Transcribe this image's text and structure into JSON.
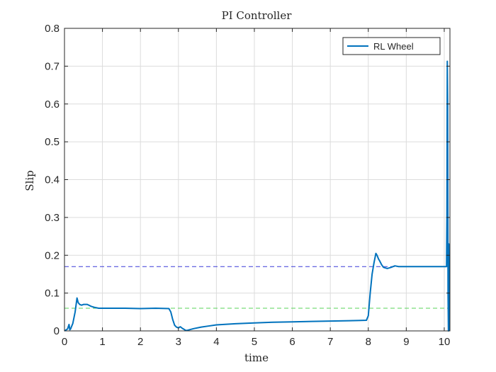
{
  "chart_data": {
    "type": "line",
    "title": "PI Controller",
    "xlabel": "time",
    "ylabel": "Slip",
    "xlim": [
      0,
      10.15
    ],
    "ylim": [
      0,
      0.8
    ],
    "xticks": [
      0,
      1,
      2,
      3,
      4,
      5,
      6,
      7,
      8,
      9,
      10
    ],
    "yticks": [
      0,
      0.1,
      0.2,
      0.3,
      0.4,
      0.5,
      0.6,
      0.7,
      0.8
    ],
    "xtick_labels": [
      "0",
      "1",
      "2",
      "3",
      "4",
      "5",
      "6",
      "7",
      "8",
      "9",
      "10"
    ],
    "ytick_labels": [
      "0",
      "0.1",
      "0.2",
      "0.3",
      "0.4",
      "0.5",
      "0.6",
      "0.7",
      "0.8"
    ],
    "grid": true,
    "legend_position": "top-right",
    "colors": {
      "series": "#0072bd",
      "ref_high": "#3a3ad8",
      "ref_low": "#5ad35a",
      "grid": "#dcdcdc",
      "axis": "#262626"
    },
    "series": [
      {
        "name": "RL Wheel",
        "x": [
          0,
          0.08,
          0.12,
          0.14,
          0.16,
          0.18,
          0.22,
          0.28,
          0.33,
          0.36,
          0.4,
          0.45,
          0.5,
          0.6,
          0.7,
          0.8,
          0.9,
          1.0,
          1.1,
          1.3,
          1.6,
          2.0,
          2.4,
          2.75,
          2.8,
          2.85,
          2.9,
          2.95,
          3.0,
          3.05,
          3.1,
          3.15,
          3.2,
          3.25,
          3.4,
          3.6,
          3.8,
          4.0,
          4.5,
          5.0,
          5.5,
          6.0,
          6.5,
          7.0,
          7.5,
          7.95,
          8.0,
          8.05,
          8.1,
          8.15,
          8.2,
          8.23,
          8.27,
          8.3,
          8.35,
          8.4,
          8.5,
          8.6,
          8.7,
          8.8,
          9.0,
          9.5,
          10.0,
          10.06,
          10.07,
          10.08,
          10.09,
          10.1,
          10.11,
          10.12,
          10.13,
          10.14
        ],
        "y": [
          0,
          0.005,
          0.017,
          0.003,
          0.005,
          0.01,
          0.02,
          0.05,
          0.087,
          0.075,
          0.07,
          0.068,
          0.07,
          0.07,
          0.065,
          0.062,
          0.06,
          0.06,
          0.06,
          0.06,
          0.06,
          0.059,
          0.06,
          0.059,
          0.05,
          0.03,
          0.015,
          0.01,
          0.008,
          0.011,
          0.007,
          0.004,
          0.001,
          0.002,
          0.006,
          0.01,
          0.013,
          0.016,
          0.019,
          0.021,
          0.023,
          0.024,
          0.025,
          0.026,
          0.027,
          0.028,
          0.04,
          0.1,
          0.15,
          0.18,
          0.205,
          0.2,
          0.19,
          0.185,
          0.175,
          0.168,
          0.165,
          0.168,
          0.172,
          0.17,
          0.17,
          0.17,
          0.17,
          0.17,
          0.3,
          0.713,
          0.6,
          0.1,
          0.0,
          0.23,
          0.02,
          0.0
        ]
      }
    ],
    "reference_lines": [
      {
        "y": 0.17,
        "style": "dashed",
        "color": "#3a3ad8"
      },
      {
        "y": 0.06,
        "style": "dashed",
        "color": "#5ad35a"
      }
    ]
  }
}
